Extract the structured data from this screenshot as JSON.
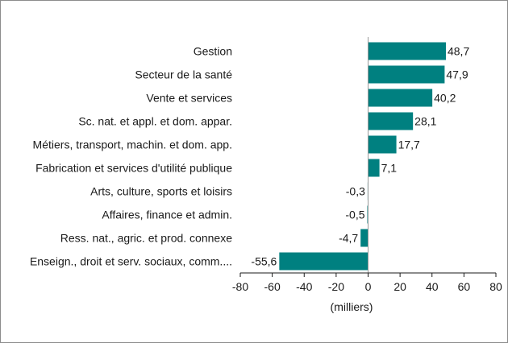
{
  "chart_data": {
    "type": "bar",
    "orientation": "horizontal",
    "categories": [
      "Gestion",
      "Secteur de la santé",
      "Vente et services",
      "Sc. nat. et appl. et dom. appar.",
      "Métiers, transport, machin. et dom. app.",
      "Fabrication et services d'utilité publique",
      "Arts, culture, sports et loisirs",
      "Affaires, finance et admin.",
      "Ress. nat., agric. et prod. connexe",
      "Enseign., droit et serv. sociaux, comm...."
    ],
    "values": [
      48.7,
      47.9,
      40.2,
      28.1,
      17.7,
      7.1,
      -0.3,
      -0.5,
      -4.7,
      -55.6
    ],
    "value_labels": [
      "48,7",
      "47,9",
      "40,2",
      "28,1",
      "17,7",
      "7,1",
      "-0,3",
      "-0,5",
      "-4,7",
      "-55,6"
    ],
    "xlabel": "(milliers)",
    "xlim": [
      -80,
      80
    ],
    "xticks": [
      -80,
      -60,
      -40,
      -20,
      0,
      20,
      40,
      60,
      80
    ],
    "grid": false,
    "legend": "none",
    "bar_color": "#008080"
  }
}
